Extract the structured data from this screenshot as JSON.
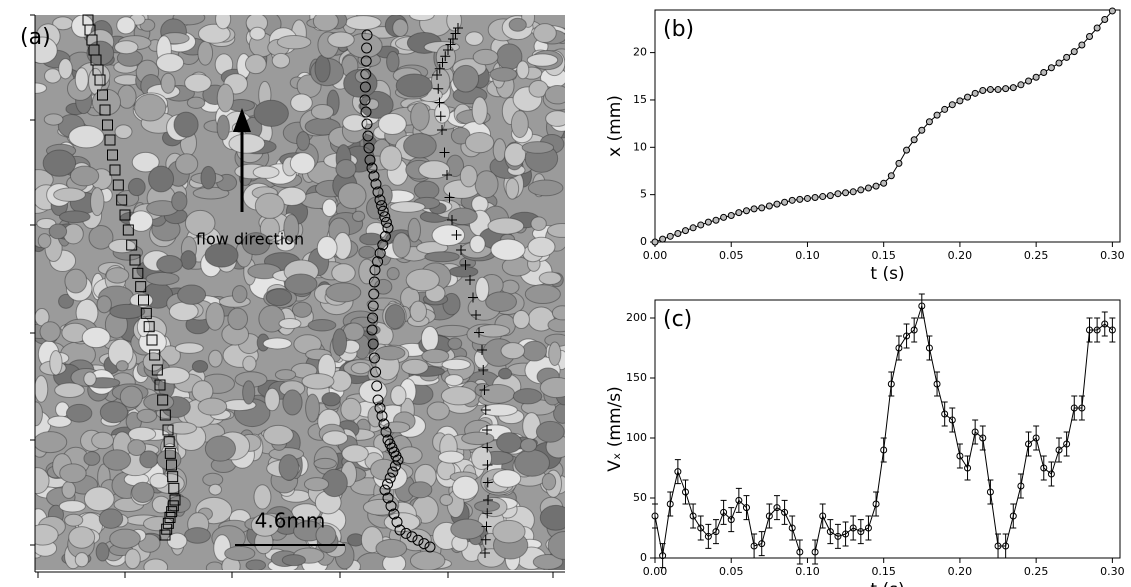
{
  "chart_data": [
    {
      "type": "image",
      "panel_label": "(a)",
      "annotation": "flow direction",
      "scale_bar_label": "4.6mm"
    },
    {
      "type": "line",
      "panel_label": "(b)",
      "xlabel": "t (s)",
      "ylabel": "x (mm)",
      "marker": "circle",
      "color": "#000000",
      "x": [
        0,
        0.005,
        0.01,
        0.015,
        0.02,
        0.025,
        0.03,
        0.035,
        0.04,
        0.045,
        0.05,
        0.055,
        0.06,
        0.065,
        0.07,
        0.075,
        0.08,
        0.085,
        0.09,
        0.095,
        0.1,
        0.105,
        0.11,
        0.115,
        0.12,
        0.125,
        0.13,
        0.135,
        0.14,
        0.145,
        0.15,
        0.155,
        0.16,
        0.165,
        0.17,
        0.175,
        0.18,
        0.185,
        0.19,
        0.195,
        0.2,
        0.205,
        0.21,
        0.215,
        0.22,
        0.225,
        0.23,
        0.235,
        0.24,
        0.245,
        0.25,
        0.255,
        0.26,
        0.265,
        0.27,
        0.275,
        0.28,
        0.285,
        0.29,
        0.295,
        0.3
      ],
      "series": [
        {
          "name": "x",
          "color": "#000000",
          "values": [
            0,
            0.3,
            0.6,
            0.9,
            1.2,
            1.5,
            1.8,
            2.1,
            2.3,
            2.6,
            2.8,
            3.1,
            3.3,
            3.5,
            3.6,
            3.8,
            4.0,
            4.2,
            4.4,
            4.5,
            4.6,
            4.7,
            4.8,
            4.9,
            5.1,
            5.2,
            5.3,
            5.5,
            5.7,
            5.9,
            6.2,
            7.0,
            8.3,
            9.7,
            10.8,
            11.8,
            12.7,
            13.4,
            14.0,
            14.5,
            14.9,
            15.3,
            15.7,
            16.0,
            16.1,
            16.1,
            16.2,
            16.3,
            16.6,
            17.0,
            17.4,
            17.9,
            18.4,
            18.9,
            19.5,
            20.1,
            20.8,
            21.7,
            22.6,
            23.5,
            24.4
          ]
        }
      ],
      "xlim": [
        0,
        0.305
      ],
      "ylim": [
        0,
        24.5
      ],
      "xticks": [
        {
          "value": 0,
          "label": "0.00"
        },
        {
          "value": 0.05,
          "label": "0.05"
        },
        {
          "value": 0.1,
          "label": "0.10"
        },
        {
          "value": 0.15,
          "label": "0.15"
        },
        {
          "value": 0.2,
          "label": "0.20"
        },
        {
          "value": 0.25,
          "label": "0.25"
        },
        {
          "value": 0.3,
          "label": "0.30"
        }
      ],
      "yticks": [
        0,
        5,
        10,
        15,
        20
      ]
    },
    {
      "type": "errorbar",
      "panel_label": "(c)",
      "xlabel": "t (s)",
      "ylabel": "Vₓ (mm/s)",
      "marker": "circle",
      "color": "#000000",
      "error": 10,
      "x": [
        0,
        0.005,
        0.01,
        0.015,
        0.02,
        0.025,
        0.03,
        0.035,
        0.04,
        0.045,
        0.05,
        0.055,
        0.06,
        0.065,
        0.07,
        0.075,
        0.08,
        0.085,
        0.09,
        0.095,
        0.1,
        0.105,
        0.11,
        0.115,
        0.12,
        0.125,
        0.13,
        0.135,
        0.14,
        0.145,
        0.15,
        0.155,
        0.16,
        0.165,
        0.17,
        0.175,
        0.18,
        0.185,
        0.19,
        0.195,
        0.2,
        0.205,
        0.21,
        0.215,
        0.22,
        0.225,
        0.23,
        0.235,
        0.24,
        0.245,
        0.25,
        0.255,
        0.26,
        0.265,
        0.27,
        0.275,
        0.28,
        0.285,
        0.29,
        0.295,
        0.3
      ],
      "series": [
        {
          "name": "Vx",
          "color": "#000000",
          "values": [
            35,
            2,
            45,
            72,
            55,
            35,
            25,
            18,
            22,
            38,
            32,
            48,
            42,
            10,
            12,
            35,
            42,
            38,
            25,
            5,
            null,
            5,
            35,
            22,
            18,
            20,
            25,
            22,
            25,
            45,
            90,
            145,
            175,
            185,
            190,
            210,
            175,
            145,
            120,
            115,
            85,
            75,
            105,
            100,
            55,
            10,
            10,
            35,
            60,
            95,
            100,
            75,
            70,
            90,
            95,
            125,
            125,
            190,
            190,
            195,
            190
          ]
        }
      ],
      "xlim": [
        0,
        0.305
      ],
      "ylim": [
        0,
        215
      ],
      "xticks": [
        {
          "value": 0,
          "label": "0.00"
        },
        {
          "value": 0.05,
          "label": "0.05"
        },
        {
          "value": 0.1,
          "label": "0.10"
        },
        {
          "value": 0.15,
          "label": "0.15"
        },
        {
          "value": 0.2,
          "label": "0.20"
        },
        {
          "value": 0.25,
          "label": "0.25"
        },
        {
          "value": 0.3,
          "label": "0.30"
        }
      ],
      "yticks": [
        0,
        50,
        100,
        150,
        200
      ]
    }
  ]
}
